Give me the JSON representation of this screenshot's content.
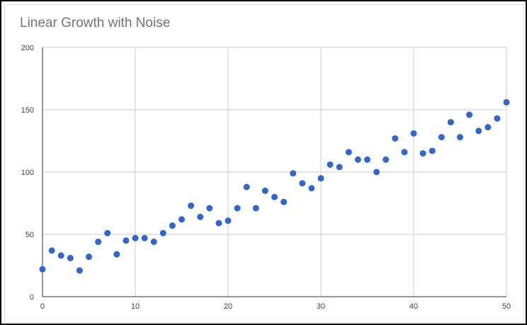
{
  "chart_data": {
    "type": "scatter",
    "title": "Linear Growth with Noise",
    "xlabel": "",
    "ylabel": "",
    "xlim": [
      0,
      50
    ],
    "ylim": [
      0,
      200
    ],
    "x_ticks": [
      0,
      10,
      20,
      30,
      40,
      50
    ],
    "y_ticks": [
      0,
      50,
      100,
      150,
      200
    ],
    "grid": true,
    "legend": "none",
    "colors": {
      "points": "#3366cc",
      "grid": "#cccccc",
      "axis": "#333333"
    },
    "x": [
      0,
      1,
      2,
      3,
      4,
      5,
      6,
      7,
      8,
      9,
      10,
      11,
      12,
      13,
      14,
      15,
      16,
      17,
      18,
      19,
      20,
      21,
      22,
      23,
      24,
      25,
      26,
      27,
      28,
      29,
      30,
      31,
      32,
      33,
      34,
      35,
      36,
      37,
      38,
      39,
      40,
      41,
      42,
      43,
      44,
      45,
      46,
      47,
      48,
      49,
      50
    ],
    "values": [
      22,
      37,
      33,
      31,
      21,
      32,
      44,
      51,
      34,
      45,
      47,
      47,
      44,
      51,
      57,
      62,
      73,
      64,
      71,
      59,
      61,
      71,
      88,
      71,
      85,
      80,
      76,
      99,
      91,
      87,
      95,
      106,
      104,
      116,
      110,
      110,
      100,
      110,
      127,
      116,
      131,
      115,
      117,
      128,
      140,
      128,
      146,
      133,
      136,
      143,
      156
    ]
  }
}
